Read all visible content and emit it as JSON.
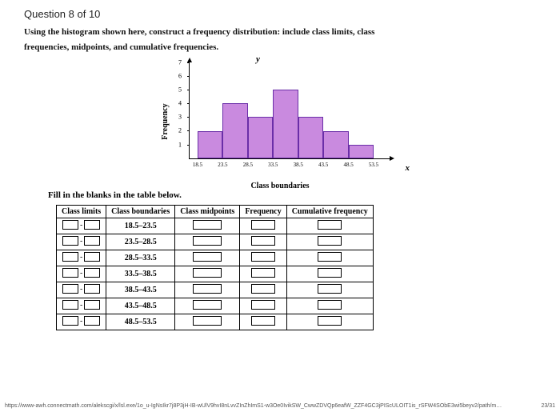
{
  "question_number": "Question 8 of 10",
  "prompt_line1": "Using the histogram shown here, construct a frequency distribution: include class limits, class",
  "prompt_line2": "frequencies, midpoints, and cumulative frequencies.",
  "chart": {
    "type": "histogram",
    "y_axis_symbol": "y",
    "x_axis_symbol": "x",
    "ylabel": "Frequency",
    "xlabel": "Class boundaries",
    "bar_fill": "#c98adf",
    "bar_border": "#6a2ea8",
    "ylim": [
      0,
      7
    ],
    "yticks": [
      1,
      2,
      3,
      4,
      5,
      6,
      7
    ],
    "xticks": [
      "18.5",
      "23.5",
      "28.5",
      "33.5",
      "38.5",
      "43.5",
      "48.5",
      "53.5"
    ],
    "bar_values": [
      2,
      4,
      3,
      5,
      3,
      2,
      1
    ]
  },
  "fill_blanks_text": "Fill in the blanks in the table below.",
  "table": {
    "headers": [
      "Class limits",
      "Class boundaries",
      "Class midpoints",
      "Frequency",
      "Cumulative frequency"
    ],
    "boundaries": [
      "18.5–23.5",
      "23.5–28.5",
      "28.5–33.5",
      "33.5–38.5",
      "38.5–43.5",
      "43.5–48.5",
      "48.5–53.5"
    ]
  },
  "footer_url": "https://www-awh.connectmath.com/alekscgi/x/lsl.exe/1o_u-IgNsIkr7j8P3jH-IB-wUlV9hvI8nLvvZInZhImS1-w3Oe0IvikSW_CwwZDVQp6eafW_ZZF4GC3jPIScULOIT1is_rSFW4SObE3wi5beyv2/path/m…",
  "footer_page": "23/31"
}
